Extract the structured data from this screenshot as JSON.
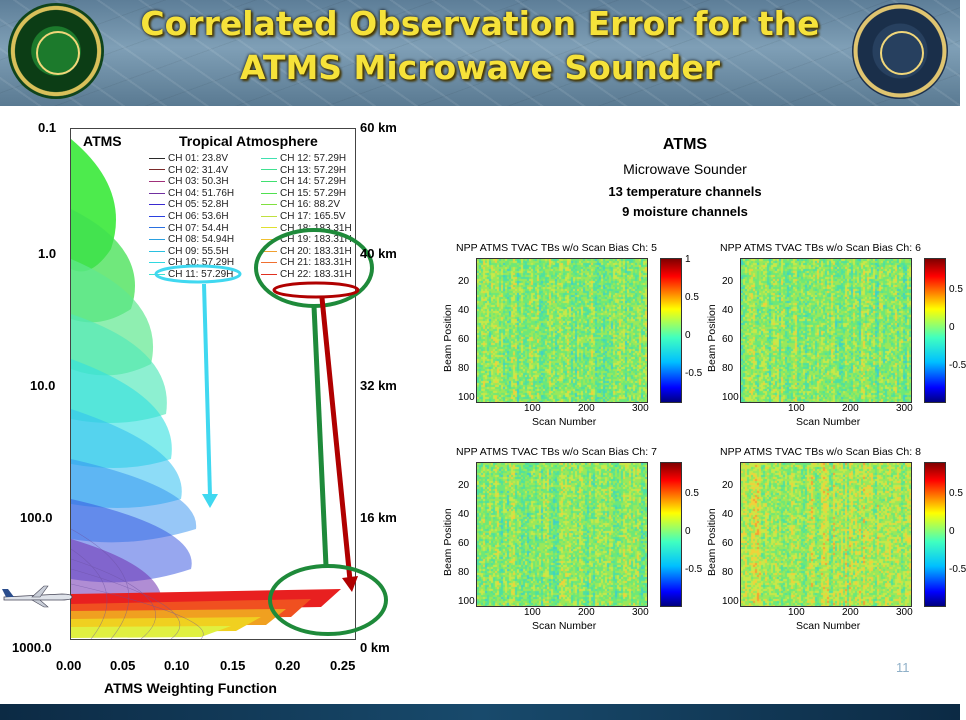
{
  "header": {
    "title_line1": "Correlated Observation Error for the",
    "title_line2": "ATMS Microwave Sounder"
  },
  "weighting_plot": {
    "label_left": "ATMS",
    "label_right": "Tropical Atmosphere",
    "pressure_ticks": [
      "0.1",
      "1.0",
      "10.0",
      "100.0",
      "1000.0"
    ],
    "height_ticks": [
      "60 km",
      "40 km",
      "32 km",
      "16 km",
      "0 km"
    ],
    "x_ticks": [
      "0.00",
      "0.05",
      "0.10",
      "0.15",
      "0.20",
      "0.25"
    ],
    "x_axis_label": "ATMS Weighting Function",
    "legend_left": [
      {
        "label": "CH 01: 23.8V",
        "color": "#2a2a2a"
      },
      {
        "label": "CH 02: 31.4V",
        "color": "#7a2a2a"
      },
      {
        "label": "CH 03: 50.3H",
        "color": "#a0307a"
      },
      {
        "label": "CH 04: 51.76H",
        "color": "#7030a0"
      },
      {
        "label": "CH 05: 52.8H",
        "color": "#3a2ad0"
      },
      {
        "label": "CH 06: 53.6H",
        "color": "#2a40e0"
      },
      {
        "label": "CH 07: 54.4H",
        "color": "#2a70e0"
      },
      {
        "label": "CH 08: 54.94H",
        "color": "#2aa0e0"
      },
      {
        "label": "CH 09: 55.5H",
        "color": "#2ac0e0"
      },
      {
        "label": "CH 10: 57.29H",
        "color": "#30d8e0"
      },
      {
        "label": "CH 11: 57.29H",
        "color": "#40e0d0"
      }
    ],
    "legend_right": [
      {
        "label": "CH 12: 57.29H",
        "color": "#40e0b0"
      },
      {
        "label": "CH 13: 57.29H",
        "color": "#40e090"
      },
      {
        "label": "CH 14: 57.29H",
        "color": "#40e070"
      },
      {
        "label": "CH 15: 57.29H",
        "color": "#50e050"
      },
      {
        "label": "CH 16: 88.2V",
        "color": "#80e040"
      },
      {
        "label": "CH 17: 165.5V",
        "color": "#c0e040"
      },
      {
        "label": "CH 18: 183.31H",
        "color": "#e0e030"
      },
      {
        "label": "CH 19: 183.31H",
        "color": "#f0c030"
      },
      {
        "label": "CH 20: 183.31H",
        "color": "#f0a030"
      },
      {
        "label": "CH 21: 183.31H",
        "color": "#f07030"
      },
      {
        "label": "CH 22: 183.31H",
        "color": "#e03020"
      }
    ]
  },
  "info": {
    "title": "ATMS",
    "subtitle": "Microwave Sounder",
    "line1": "13 temperature channels",
    "line2": "9 moisture channels"
  },
  "heatmaps": [
    {
      "title": "NPP ATMS TVAC TBs w/o Scan Bias Ch: 5",
      "cbar_ticks": [
        "1",
        "0.5",
        "0",
        "-0.5"
      ]
    },
    {
      "title": "NPP ATMS TVAC TBs w/o Scan Bias Ch: 6",
      "cbar_ticks": [
        "0.5",
        "0",
        "-0.5"
      ]
    },
    {
      "title": "NPP ATMS TVAC TBs w/o Scan Bias Ch: 7",
      "cbar_ticks": [
        "0.5",
        "0",
        "-0.5"
      ]
    },
    {
      "title": "NPP ATMS TVAC TBs w/o Scan Bias Ch: 8",
      "cbar_ticks": [
        "0.5",
        "0",
        "-0.5"
      ]
    }
  ],
  "heatmap_axes": {
    "y_label": "Beam Position",
    "x_label": "Scan Number",
    "y_ticks": [
      "20",
      "40",
      "60",
      "80",
      "100"
    ],
    "x_ticks": [
      "100",
      "200",
      "300"
    ]
  },
  "slide_number": "11"
}
